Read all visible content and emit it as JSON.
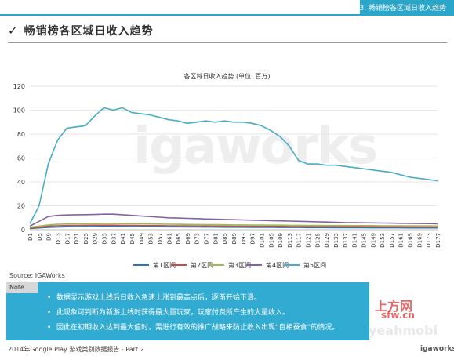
{
  "header": {
    "section": "3. 畅销榜各区域日收入趋势"
  },
  "page_title": "畅销榜各区域日收入趋势",
  "source": "Source: IGAWorks",
  "note": {
    "label": "Note",
    "bullets": [
      "数据显示游戏上线后日收入急速上涨到最高点后，逐渐开始下滑。",
      "此现象可判断为新游上线时获得最大量玩家，玩家付费所产生的大量收入。",
      "因此在初期收入达到最大值时，需进行有效的推广战略来防止收入出现“自相蚕食”的情况。"
    ]
  },
  "footer": {
    "text": "2014年Google Play 游戏类别数据报告 - Part 2"
  },
  "watermarks": {
    "center": "igaworks",
    "sfw_top": "上方网",
    "sfw_bottom": "sfw.cn",
    "yeahmobi": "yeahmobi",
    "igaworks_logo": "igaworks"
  },
  "colors": {
    "accent": "#2aa6c9",
    "note_bg": "#31abd2"
  },
  "chart_data": {
    "type": "line",
    "title": "各区域日收入趋势 (单位: 百万)",
    "xlabel": "",
    "ylabel": "",
    "ylim": [
      0,
      120
    ],
    "yticks": [
      0,
      20,
      40,
      60,
      80,
      100,
      120
    ],
    "grid": true,
    "legend_position": "bottom",
    "x": [
      "D1",
      "D5",
      "D9",
      "D13",
      "D17",
      "D21",
      "D25",
      "D29",
      "D33",
      "D37",
      "D41",
      "D45",
      "D49",
      "D53",
      "D57",
      "D61",
      "D65",
      "D69",
      "D73",
      "D77",
      "D81",
      "D85",
      "D89",
      "D93",
      "D97",
      "D101",
      "D105",
      "D109",
      "D113",
      "D117",
      "D121",
      "D125",
      "D129",
      "D133",
      "D137",
      "D141",
      "D145",
      "D149",
      "D153",
      "D157",
      "D161",
      "D165",
      "D169",
      "D173",
      "D177"
    ],
    "series": [
      {
        "name": "第1区间",
        "color": "#2e75b6",
        "values": [
          1,
          1.5,
          2,
          2.2,
          2.5,
          2.6,
          2.7,
          2.7,
          2.8,
          2.8,
          2.7,
          2.7,
          2.6,
          2.5,
          2.5,
          2.4,
          2.4,
          2.3,
          2.3,
          2.2,
          2.2,
          2.1,
          2.1,
          2.1,
          2.0,
          2.0,
          2.0,
          1.9,
          1.9,
          1.9,
          1.8,
          1.8,
          1.8,
          1.7,
          1.7,
          1.7,
          1.7,
          1.6,
          1.6,
          1.6,
          1.6,
          1.5,
          1.5,
          1.5,
          1.5
        ]
      },
      {
        "name": "第2区间",
        "color": "#c0504d",
        "values": [
          1.5,
          2,
          3,
          3.3,
          3.5,
          3.6,
          3.7,
          3.8,
          3.8,
          3.8,
          3.7,
          3.6,
          3.5,
          3.4,
          3.4,
          3.3,
          3.2,
          3.2,
          3.1,
          3.1,
          3.0,
          3.0,
          2.9,
          2.9,
          2.9,
          2.8,
          2.8,
          2.8,
          2.7,
          2.7,
          2.7,
          2.6,
          2.6,
          2.6,
          2.5,
          2.5,
          2.5,
          2.5,
          2.4,
          2.4,
          2.4,
          2.4,
          2.3,
          2.3,
          2.3
        ]
      },
      {
        "name": "第3区间",
        "color": "#9bbb59",
        "values": [
          2,
          3,
          4,
          4.5,
          4.8,
          5,
          5,
          5.1,
          5.2,
          5.2,
          5.1,
          5,
          4.9,
          4.8,
          4.7,
          4.6,
          4.5,
          4.4,
          4.3,
          4.2,
          4.2,
          4.1,
          4.0,
          4.0,
          3.9,
          3.9,
          3.8,
          3.8,
          3.7,
          3.7,
          3.6,
          3.6,
          3.5,
          3.5,
          3.5,
          3.4,
          3.4,
          3.4,
          3.3,
          3.3,
          3.3,
          3.2,
          3.2,
          3.2,
          3.1
        ]
      },
      {
        "name": "第4区间",
        "color": "#8064a2",
        "values": [
          3,
          7,
          11,
          12,
          12.3,
          12.5,
          12.6,
          12.7,
          13,
          13,
          12.5,
          12,
          11.5,
          11,
          10.5,
          10,
          9.8,
          9.5,
          9.3,
          9,
          8.8,
          8.6,
          8.4,
          8.2,
          8,
          7.8,
          7.6,
          7.4,
          7.2,
          7,
          6.8,
          6.6,
          6.4,
          6.2,
          6,
          5.9,
          5.8,
          5.7,
          5.6,
          5.5,
          5.4,
          5.3,
          5.2,
          5.1,
          5
        ]
      },
      {
        "name": "第5区间",
        "color": "#4bacc6",
        "values": [
          5,
          20,
          55,
          75,
          85,
          86,
          87,
          95,
          102,
          100,
          102,
          98,
          97,
          96,
          94,
          92,
          91,
          89,
          90,
          91,
          90,
          91,
          90,
          90,
          89,
          87,
          83,
          78,
          70,
          58,
          55,
          55,
          54,
          54,
          53,
          52,
          51,
          50,
          49,
          48,
          46,
          44,
          43,
          42,
          41
        ]
      }
    ]
  }
}
